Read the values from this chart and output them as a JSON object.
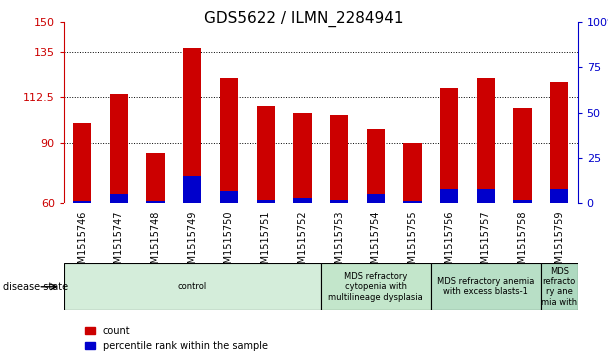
{
  "title": "GDS5622 / ILMN_2284941",
  "samples": [
    "GSM1515746",
    "GSM1515747",
    "GSM1515748",
    "GSM1515749",
    "GSM1515750",
    "GSM1515751",
    "GSM1515752",
    "GSM1515753",
    "GSM1515754",
    "GSM1515755",
    "GSM1515756",
    "GSM1515757",
    "GSM1515758",
    "GSM1515759"
  ],
  "count_values": [
    100,
    114,
    85,
    137,
    122,
    108,
    105,
    104,
    97,
    90,
    117,
    122,
    107,
    120
  ],
  "percentile_values": [
    1,
    5,
    1,
    15,
    7,
    2,
    3,
    2,
    5,
    1,
    8,
    8,
    2,
    8
  ],
  "ymin": 60,
  "ymax": 150,
  "yticks_left": [
    60,
    90,
    112.5,
    135,
    150
  ],
  "yticks_right": [
    0,
    25,
    50,
    75,
    100
  ],
  "bar_color_red": "#cc0000",
  "bar_color_blue": "#0000cc",
  "bar_width": 0.5,
  "background_plot": "#ffffff",
  "disease_groups": [
    {
      "label": "control",
      "start": 0,
      "end": 7,
      "color": "#d4edda"
    },
    {
      "label": "MDS refractory\ncytopenia with\nmultilineage dysplasia",
      "start": 7,
      "end": 10,
      "color": "#c3e6cb"
    },
    {
      "label": "MDS refractory anemia\nwith excess blasts-1",
      "start": 10,
      "end": 13,
      "color": "#b8dfc6"
    },
    {
      "label": "MDS\nrefracto\nry ane\nmia with",
      "start": 13,
      "end": 14,
      "color": "#aed9c0"
    }
  ],
  "tick_color_left": "#cc0000",
  "tick_color_right": "#0000cc",
  "title_fontsize": 11,
  "axis_fontsize": 8,
  "sample_fontsize": 7,
  "disease_fontsize": 6,
  "legend_fontsize": 7,
  "grey_bg": "#cccccc",
  "disease_state_label": "disease state"
}
